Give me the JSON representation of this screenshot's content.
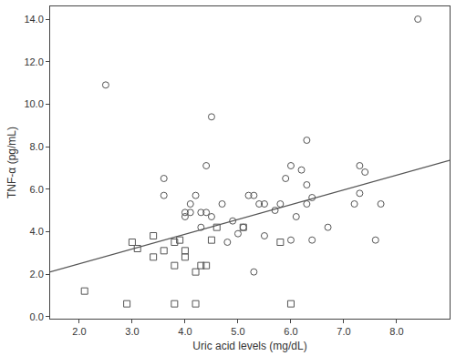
{
  "chart_data": {
    "type": "scatter",
    "x_label": "Uric acid levels (mg/dL)",
    "y_label": "TNF-α (pg/mL)",
    "xlim": [
      1.45,
      9.0
    ],
    "ylim": [
      -0.1,
      14.6
    ],
    "xticks": [
      {
        "value": 2,
        "label": "2.0"
      },
      {
        "value": 3,
        "label": "3.0"
      },
      {
        "value": 4,
        "label": "4.0"
      },
      {
        "value": 5,
        "label": "5.0"
      },
      {
        "value": 6,
        "label": "6.0"
      },
      {
        "value": 7,
        "label": "7.0"
      },
      {
        "value": 8,
        "label": "8.0"
      }
    ],
    "yticks": [
      {
        "value": 0,
        "label": "0.0"
      },
      {
        "value": 2,
        "label": "2.0"
      },
      {
        "value": 4,
        "label": "4.0"
      },
      {
        "value": 6,
        "label": "6.0"
      },
      {
        "value": 8,
        "label": "8.0"
      },
      {
        "value": 10,
        "label": "10.0"
      },
      {
        "value": 12,
        "label": "12.0"
      },
      {
        "value": 14,
        "label": "14.0"
      }
    ],
    "grid": false,
    "series": [
      {
        "type": "scatter",
        "marker": "circle-open",
        "color": "#555555",
        "x": [
          2.5,
          3.6,
          3.6,
          4.0,
          4.0,
          4.1,
          4.1,
          4.2,
          4.3,
          4.3,
          4.4,
          4.4,
          4.5,
          4.5,
          4.7,
          4.8,
          4.9,
          5.0,
          5.1,
          5.2,
          5.3,
          5.3,
          5.4,
          5.5,
          5.5,
          5.7,
          5.8,
          5.9,
          6.0,
          6.0,
          6.1,
          6.2,
          6.3,
          6.3,
          6.3,
          6.4,
          6.4,
          6.7,
          7.2,
          7.3,
          7.3,
          7.4,
          7.6,
          7.7,
          8.4
        ],
        "values": [
          10.9,
          6.5,
          5.7,
          4.7,
          4.9,
          5.3,
          4.9,
          5.7,
          4.2,
          4.9,
          7.1,
          4.9,
          9.4,
          4.7,
          5.3,
          3.5,
          4.5,
          3.9,
          4.2,
          5.7,
          5.7,
          2.1,
          5.3,
          5.3,
          3.8,
          5.0,
          5.3,
          6.5,
          7.1,
          3.6,
          4.7,
          6.9,
          8.3,
          6.2,
          5.3,
          5.6,
          3.6,
          4.2,
          5.3,
          7.1,
          5.8,
          6.8,
          3.6,
          5.3,
          14.0
        ]
      },
      {
        "type": "scatter",
        "marker": "square-open",
        "color": "#555555",
        "x": [
          2.1,
          2.9,
          3.0,
          3.1,
          3.4,
          3.4,
          3.6,
          3.8,
          3.8,
          3.8,
          3.9,
          4.0,
          4.0,
          4.2,
          4.2,
          4.3,
          4.4,
          4.5,
          4.6,
          5.1,
          5.8,
          6.0
        ],
        "values": [
          1.2,
          0.6,
          3.5,
          3.2,
          3.8,
          2.8,
          3.1,
          3.5,
          2.4,
          0.6,
          3.6,
          3.1,
          2.8,
          0.6,
          2.1,
          2.4,
          2.4,
          3.6,
          4.2,
          4.2,
          3.5,
          0.6
        ]
      },
      {
        "type": "line",
        "line_style": "solid",
        "color": "#555555",
        "x": [
          1.45,
          9.0
        ],
        "values": [
          2.1,
          7.35
        ]
      }
    ]
  }
}
